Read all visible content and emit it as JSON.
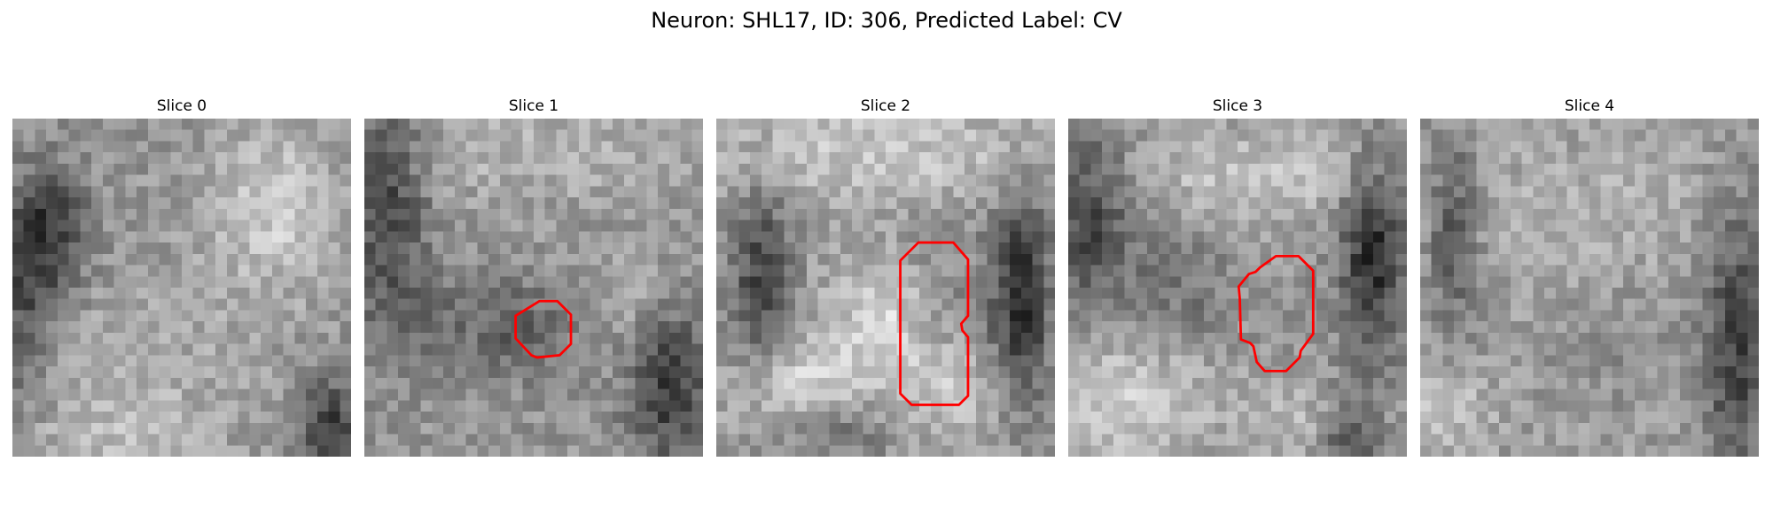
{
  "figure": {
    "title": "Neuron: SHL17, ID: 306, Predicted Label: CV"
  },
  "panels": [
    {
      "title": "Slice 0",
      "roi": null
    },
    {
      "title": "Slice 1",
      "roi": [
        [
          15.5,
          16.2
        ],
        [
          17.1,
          16.2
        ],
        [
          18.3,
          17.4
        ],
        [
          18.3,
          20
        ],
        [
          17.3,
          21
        ],
        [
          15.3,
          21.2
        ],
        [
          14.8,
          21
        ],
        [
          13.4,
          19.5
        ],
        [
          13.4,
          17.5
        ]
      ]
    },
    {
      "title": "Slice 2",
      "roi": [
        [
          17.9,
          11
        ],
        [
          21,
          11
        ],
        [
          22.3,
          12.5
        ],
        [
          22.3,
          17.5
        ],
        [
          21.7,
          18.2
        ],
        [
          21.8,
          18.8
        ],
        [
          22.3,
          19.4
        ],
        [
          22.3,
          24.6
        ],
        [
          21.5,
          25.4
        ],
        [
          17.3,
          25.4
        ],
        [
          16.3,
          24.4
        ],
        [
          16.3,
          12.6
        ]
      ]
    },
    {
      "title": "Slice 3",
      "roi": [
        [
          17,
          13.2
        ],
        [
          18.4,
          12.2
        ],
        [
          20.4,
          12.2
        ],
        [
          21.7,
          13.5
        ],
        [
          21.7,
          19.1
        ],
        [
          20.6,
          20.6
        ],
        [
          20.5,
          21.2
        ],
        [
          19.3,
          22.4
        ],
        [
          17.4,
          22.4
        ],
        [
          16.7,
          21.6
        ],
        [
          16.4,
          20.2
        ],
        [
          16.1,
          19.9
        ],
        [
          15.3,
          19.6
        ],
        [
          15.2,
          16
        ],
        [
          15.1,
          14.9
        ],
        [
          16,
          13.8
        ],
        [
          16.6,
          13.6
        ]
      ]
    },
    {
      "title": "Slice 4",
      "roi": null
    }
  ],
  "style": {
    "roi_color": "#ff0000",
    "colormap": "gray"
  }
}
